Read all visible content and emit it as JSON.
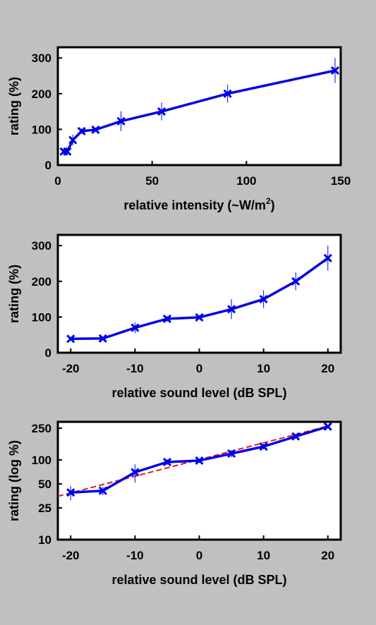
{
  "colors": {
    "background": "#c0c0c0",
    "plot_bg": "#ffffff",
    "series": "#0000e6",
    "fit": "#e61919"
  },
  "chart_data": [
    {
      "type": "line",
      "xlabel": "relative intensity (~W/m",
      "xlabel_sup": "2",
      "xlabel_end": ")",
      "ylabel": "rating (%)",
      "xlim": [
        0,
        150
      ],
      "ylim": [
        0,
        330
      ],
      "xticks": [
        0,
        50,
        100,
        150
      ],
      "yticks": [
        0,
        100,
        200,
        300
      ],
      "x": [
        3.16,
        5.0,
        7.94,
        12.6,
        20.0,
        33.5,
        55.0,
        90.0,
        147.0
      ],
      "y": [
        38,
        38,
        70,
        95,
        99,
        123,
        150,
        200,
        265
      ],
      "errors": [
        5,
        5,
        15,
        8,
        6,
        28,
        25,
        25,
        35
      ],
      "grid": false
    },
    {
      "type": "line",
      "xlabel": "relative sound level (dB SPL)",
      "ylabel": "rating (%)",
      "xlim": [
        -22,
        22
      ],
      "ylim": [
        0,
        330
      ],
      "xticks": [
        -20,
        -10,
        0,
        10,
        20
      ],
      "yticks": [
        0,
        100,
        200,
        300
      ],
      "x": [
        -20,
        -15,
        -10,
        -5,
        0,
        5,
        10,
        15,
        20
      ],
      "y": [
        39,
        40,
        70,
        95,
        99,
        122,
        150,
        200,
        265
      ],
      "errors": [
        5,
        5,
        15,
        8,
        6,
        28,
        25,
        25,
        35
      ],
      "grid": false
    },
    {
      "type": "line",
      "scale": "log",
      "xlabel": "relative sound level (dB SPL)",
      "ylabel": "rating (log %)",
      "xlim": [
        -22,
        22
      ],
      "ylim": [
        10,
        300
      ],
      "xticks": [
        -20,
        -10,
        0,
        10,
        20
      ],
      "yticks": [
        10,
        25,
        50,
        100,
        250
      ],
      "x": [
        -20,
        -15,
        -10,
        -5,
        0,
        5,
        10,
        15,
        20
      ],
      "y": [
        39,
        41,
        70,
        94,
        98,
        120,
        147,
        197,
        262
      ],
      "errors": [
        8,
        5,
        18,
        8,
        6,
        12,
        12,
        12,
        10
      ],
      "fit": {
        "x": [
          -22,
          20
        ],
        "y": [
          35,
          265
        ]
      },
      "grid": false
    }
  ]
}
